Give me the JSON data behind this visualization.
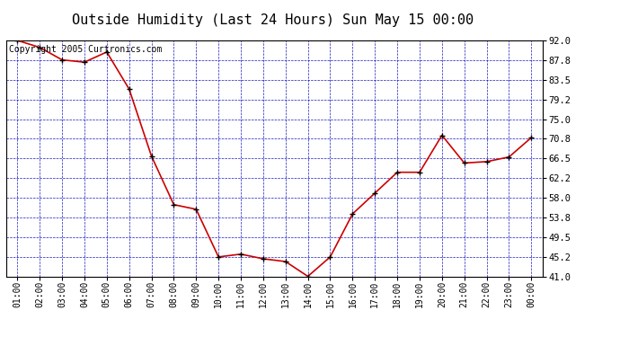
{
  "title": "Outside Humidity (Last 24 Hours) Sun May 15 00:00",
  "copyright": "Copyright 2005 Curtronics.com",
  "x_labels": [
    "01:00",
    "02:00",
    "03:00",
    "04:00",
    "05:00",
    "06:00",
    "07:00",
    "08:00",
    "09:00",
    "10:00",
    "11:00",
    "12:00",
    "13:00",
    "14:00",
    "15:00",
    "16:00",
    "17:00",
    "18:00",
    "19:00",
    "20:00",
    "21:00",
    "22:00",
    "23:00",
    "00:00"
  ],
  "x_values": [
    1,
    2,
    3,
    4,
    5,
    6,
    7,
    8,
    9,
    10,
    11,
    12,
    13,
    14,
    15,
    16,
    17,
    18,
    19,
    20,
    21,
    22,
    23,
    24
  ],
  "y_values": [
    92.0,
    90.5,
    87.8,
    87.3,
    89.5,
    81.5,
    67.0,
    56.5,
    55.5,
    45.2,
    45.8,
    44.8,
    44.2,
    41.0,
    45.2,
    54.5,
    59.0,
    63.5,
    63.5,
    71.5,
    65.5,
    65.8,
    66.8,
    71.0
  ],
  "ylim": [
    41.0,
    92.0
  ],
  "yticks": [
    41.0,
    45.2,
    49.5,
    53.8,
    58.0,
    62.2,
    66.5,
    70.8,
    75.0,
    79.2,
    83.5,
    87.8,
    92.0
  ],
  "line_color": "#cc0000",
  "marker_color": "#000000",
  "grid_color": "#0000bb",
  "bg_color": "#ffffff",
  "plot_bg_color": "#ffffff",
  "title_fontsize": 11,
  "copyright_fontsize": 7,
  "tick_fontsize": 7,
  "ytick_fontsize": 7.5
}
